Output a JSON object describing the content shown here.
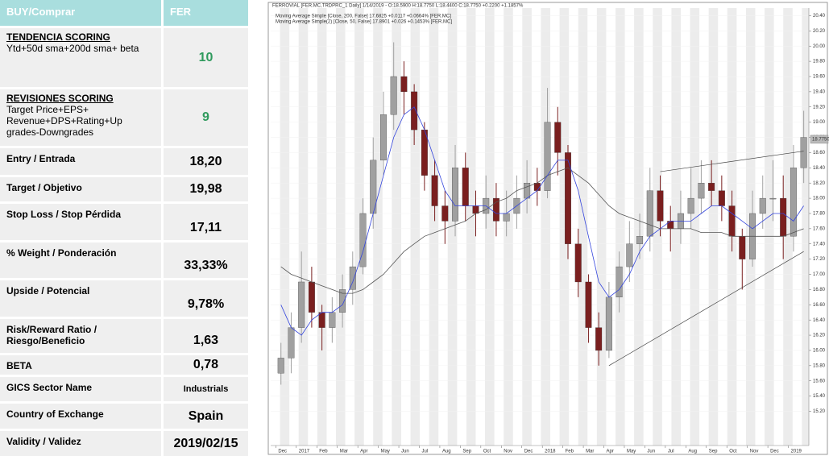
{
  "table": {
    "header": [
      "BUY/Comprar",
      "FER"
    ],
    "rows": [
      {
        "head": "TENDENCIA SCORING",
        "sub": [
          "Ytd+50d sma+200d sma+ beta"
        ],
        "value": "10"
      },
      {
        "head": "REVISIONES SCORING",
        "sub": [
          "Target Price+EPS+",
          "Revenue+DPS+Rating+Up",
          "grades-Downgrades"
        ],
        "value": "9"
      },
      {
        "label": "Entry / Entrada",
        "value": "18,20"
      },
      {
        "label": "Target / Objetivo",
        "value": "19,98"
      },
      {
        "label": "Stop Loss / Stop Pérdida",
        "value": "17,11"
      },
      {
        "label": "% Weight / Ponderación",
        "value": "33,33%"
      },
      {
        "label": "Upside / Potencial",
        "value": "9,78%"
      },
      {
        "label": "Risk/Reward Ratio / Riesgo/Beneficio",
        "value": "1,63"
      },
      {
        "label": "BETA",
        "value": "0,78"
      },
      {
        "label": "GICS Sector Name",
        "value": "Industrials"
      },
      {
        "label": "Country of Exchange",
        "value": "Spain"
      },
      {
        "label": "Validity / Validez",
        "value": "2019/02/15"
      }
    ]
  },
  "chart_data": {
    "type": "candlestick",
    "title": "FERROVIAL [FER.MC,TRDPRC_1 Daily] 1/14/2019 - O:18.5900 H:18.7750 L:18.4400 C:18.7750 +0.2200 +1.1857%",
    "up_color": "#a0a0a0",
    "down_color": "#7a1f1f",
    "open": [
      15.7,
      15.9,
      16.3,
      16.9,
      16.5,
      16.3,
      16.5,
      16.8,
      17.1,
      17.8,
      18.5,
      19.1,
      19.6,
      19.4,
      18.9,
      18.3,
      17.9,
      17.7,
      18.4,
      17.9,
      17.8,
      18.0,
      17.7,
      17.8,
      18.0,
      18.2,
      18.1,
      19.0,
      18.6,
      17.4,
      16.9,
      16.3,
      16.0,
      16.7,
      17.1,
      17.4,
      17.5,
      18.1,
      17.7,
      17.6,
      17.8,
      18.0,
      18.2,
      18.1,
      17.9,
      17.5,
      17.2,
      17.8,
      18.0,
      18.0,
      17.5,
      18.4
    ],
    "high": [
      16.1,
      16.5,
      17.3,
      17.1,
      16.6,
      16.7,
      17.0,
      17.3,
      18.0,
      18.8,
      19.4,
      20.05,
      19.8,
      19.5,
      19.0,
      18.5,
      18.1,
      18.7,
      18.6,
      18.1,
      18.3,
      18.2,
      18.1,
      18.3,
      18.5,
      18.4,
      19.45,
      19.2,
      18.7,
      17.6,
      17.0,
      16.5,
      16.9,
      17.3,
      17.7,
      17.8,
      18.4,
      18.3,
      17.9,
      18.1,
      18.4,
      18.5,
      18.5,
      18.3,
      18.1,
      17.6,
      18.1,
      18.3,
      18.5,
      18.3,
      18.7,
      19.15
    ],
    "low": [
      15.55,
      15.7,
      16.1,
      16.3,
      16.0,
      16.1,
      16.3,
      16.6,
      17.0,
      17.6,
      18.3,
      18.9,
      19.1,
      18.7,
      18.1,
      17.7,
      17.4,
      17.5,
      17.7,
      17.5,
      17.6,
      17.5,
      17.5,
      17.6,
      17.8,
      17.9,
      18.0,
      18.3,
      17.2,
      16.7,
      16.1,
      15.8,
      15.9,
      16.5,
      16.9,
      17.2,
      17.3,
      17.5,
      17.3,
      17.4,
      17.6,
      17.8,
      17.9,
      17.7,
      17.3,
      16.8,
      17.1,
      17.6,
      17.7,
      17.2,
      17.3,
      18.2
    ],
    "close": [
      15.9,
      16.3,
      16.9,
      16.5,
      16.3,
      16.5,
      16.8,
      17.1,
      17.8,
      18.5,
      19.1,
      19.6,
      19.4,
      18.9,
      18.3,
      17.9,
      17.7,
      18.4,
      17.9,
      17.8,
      18.0,
      17.7,
      17.8,
      18.0,
      18.2,
      18.1,
      19.0,
      18.6,
      17.4,
      16.9,
      16.3,
      16.0,
      16.7,
      17.1,
      17.4,
      17.5,
      18.1,
      17.7,
      17.6,
      17.8,
      18.0,
      18.2,
      18.1,
      17.9,
      17.5,
      17.2,
      17.8,
      18.0,
      18.0,
      17.5,
      18.4,
      18.8
    ],
    "series": [
      {
        "name": "Moving Average Simple [Close, 200, False] 17.6825 +0.0117 +0.0664% [FER.MC]",
        "color": "#555555",
        "values": [
          17.1,
          17.0,
          16.95,
          16.9,
          16.85,
          16.8,
          16.75,
          16.75,
          16.8,
          16.9,
          17.0,
          17.15,
          17.3,
          17.4,
          17.5,
          17.55,
          17.6,
          17.65,
          17.7,
          17.8,
          17.85,
          17.95,
          18.0,
          18.1,
          18.15,
          18.2,
          18.3,
          18.35,
          18.4,
          18.3,
          18.2,
          18.05,
          17.9,
          17.8,
          17.75,
          17.7,
          17.65,
          17.6,
          17.6,
          17.6,
          17.6,
          17.55,
          17.55,
          17.55,
          17.5,
          17.5,
          17.5,
          17.5,
          17.5,
          17.5,
          17.55,
          17.6
        ]
      },
      {
        "name": "Moving Average Simple(2) [Close, 50, False] 17.8901 +0.026 +0.1453% [FER.MC]",
        "color": "#3344dd",
        "values": [
          16.6,
          16.3,
          16.2,
          16.4,
          16.5,
          16.5,
          16.6,
          16.9,
          17.3,
          17.8,
          18.3,
          18.8,
          19.1,
          19.2,
          18.9,
          18.5,
          18.1,
          17.9,
          17.9,
          17.9,
          17.9,
          17.8,
          17.8,
          17.9,
          18.0,
          18.1,
          18.3,
          18.5,
          18.5,
          18.1,
          17.5,
          16.9,
          16.7,
          16.8,
          17.0,
          17.3,
          17.5,
          17.6,
          17.7,
          17.7,
          17.7,
          17.8,
          17.9,
          17.9,
          17.8,
          17.7,
          17.6,
          17.7,
          17.8,
          17.8,
          17.7,
          17.9
        ]
      }
    ],
    "trendlines": [
      {
        "x": [
          32,
          51
        ],
        "y": [
          15.8,
          17.3
        ]
      },
      {
        "x": [
          37,
          51
        ],
        "y": [
          18.35,
          18.62
        ]
      }
    ],
    "last_price": {
      "value": 18.775,
      "label": "18.7750"
    },
    "xlim": [
      -1,
      51.5
    ],
    "xticks": [
      {
        "value": -0.5,
        "label": "Dec"
      },
      {
        "value": 1.5,
        "label": "2017"
      },
      {
        "value": 3.5,
        "label": "Feb"
      },
      {
        "value": 5.5,
        "label": "Mar"
      },
      {
        "value": 7.5,
        "label": "Apr"
      },
      {
        "value": 9.5,
        "label": "May"
      },
      {
        "value": 11.5,
        "label": "Jun"
      },
      {
        "value": 13.5,
        "label": "Jul"
      },
      {
        "value": 15.5,
        "label": "Aug"
      },
      {
        "value": 17.5,
        "label": "Sep"
      },
      {
        "value": 19.5,
        "label": "Oct"
      },
      {
        "value": 21.5,
        "label": "Nov"
      },
      {
        "value": 23.5,
        "label": "Dec"
      },
      {
        "value": 25.5,
        "label": "2018"
      },
      {
        "value": 27.5,
        "label": "Feb"
      },
      {
        "value": 29.5,
        "label": "Mar"
      },
      {
        "value": 31.5,
        "label": "Apr"
      },
      {
        "value": 33.5,
        "label": "May"
      },
      {
        "value": 35.5,
        "label": "Jun"
      },
      {
        "value": 37.5,
        "label": "Jul"
      },
      {
        "value": 39.5,
        "label": "Aug"
      },
      {
        "value": 41.5,
        "label": "Sep"
      },
      {
        "value": 43.5,
        "label": "Oct"
      },
      {
        "value": 45.5,
        "label": "Nov"
      },
      {
        "value": 47.5,
        "label": "Dec"
      },
      {
        "value": 49.5,
        "label": "2019"
      }
    ],
    "ylim": [
      14.75,
      20.5
    ],
    "yticks": [
      {
        "value": 15.2,
        "label": "15.20"
      },
      {
        "value": 15.4,
        "label": "15.40"
      },
      {
        "value": 15.6,
        "label": "15.60"
      },
      {
        "value": 15.8,
        "label": "15.80"
      },
      {
        "value": 16.0,
        "label": "16.00"
      },
      {
        "value": 16.2,
        "label": "16.20"
      },
      {
        "value": 16.4,
        "label": "16.40"
      },
      {
        "value": 16.6,
        "label": "16.60"
      },
      {
        "value": 16.8,
        "label": "16.80"
      },
      {
        "value": 17.0,
        "label": "17.00"
      },
      {
        "value": 17.2,
        "label": "17.20"
      },
      {
        "value": 17.4,
        "label": "17.40"
      },
      {
        "value": 17.6,
        "label": "17.60"
      },
      {
        "value": 17.8,
        "label": "17.80"
      },
      {
        "value": 18.0,
        "label": "18.00"
      },
      {
        "value": 18.2,
        "label": "18.20"
      },
      {
        "value": 18.4,
        "label": "18.40"
      },
      {
        "value": 18.6,
        "label": "18.60"
      },
      {
        "value": 18.8,
        "label": "18.80"
      },
      {
        "value": 19.0,
        "label": "19.00"
      },
      {
        "value": 19.2,
        "label": "19.20"
      },
      {
        "value": 19.4,
        "label": "19.40"
      },
      {
        "value": 19.6,
        "label": "19.60"
      },
      {
        "value": 19.8,
        "label": "19.80"
      },
      {
        "value": 20.0,
        "label": "20.00"
      },
      {
        "value": 20.2,
        "label": "20.20"
      },
      {
        "value": 20.4,
        "label": "20.40"
      }
    ],
    "grid": true
  }
}
